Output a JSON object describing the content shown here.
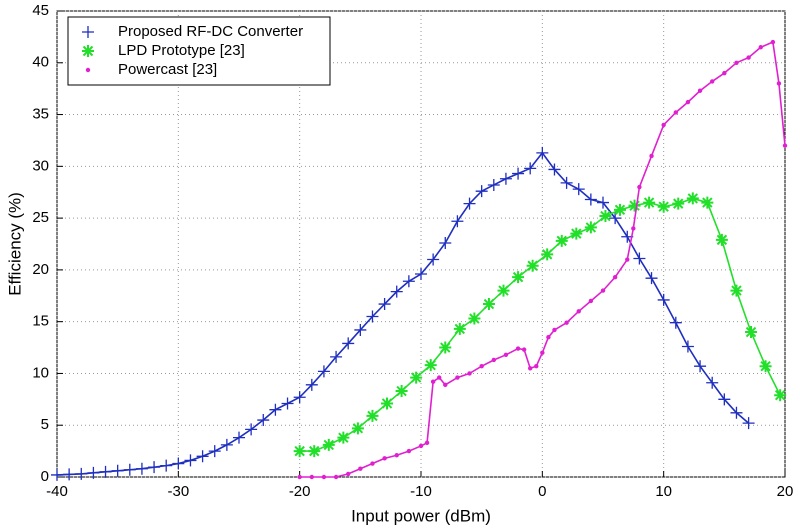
{
  "chart_data": {
    "type": "line",
    "xlabel": "Input power (dBm)",
    "ylabel": "Efficiency (%)",
    "xlim": [
      -40,
      20
    ],
    "ylim": [
      0,
      45
    ],
    "xticks": [
      -40,
      -30,
      -20,
      -10,
      0,
      10,
      20
    ],
    "yticks": [
      0,
      5,
      10,
      15,
      20,
      25,
      30,
      35,
      40,
      45
    ],
    "grid": true,
    "legend": "upper left",
    "series": [
      {
        "name": "Proposed RF-DC Converter",
        "color": "#1f2fbf",
        "marker": "plus",
        "x": [
          -40,
          -39,
          -38,
          -37,
          -36,
          -35,
          -34,
          -33,
          -32,
          -31,
          -30,
          -29,
          -28,
          -27,
          -26,
          -25,
          -24,
          -23,
          -22,
          -21,
          -20,
          -19,
          -18,
          -17,
          -16,
          -15,
          -14,
          -13,
          -12,
          -11,
          -10,
          -9,
          -8,
          -7,
          -6,
          -5,
          -4,
          -3,
          -2,
          -1,
          0,
          1,
          2,
          3,
          4,
          5,
          6,
          7,
          8,
          9,
          10,
          11,
          12,
          13,
          14,
          15,
          16,
          17
        ],
        "values": [
          0.2,
          0.25,
          0.3,
          0.4,
          0.5,
          0.6,
          0.7,
          0.8,
          0.95,
          1.1,
          1.3,
          1.6,
          2.0,
          2.5,
          3.1,
          3.8,
          4.6,
          5.5,
          6.5,
          7.1,
          7.7,
          8.9,
          10.2,
          11.6,
          12.9,
          14.2,
          15.5,
          16.7,
          17.9,
          18.9,
          19.6,
          21.0,
          22.6,
          24.7,
          26.4,
          27.6,
          28.2,
          28.8,
          29.3,
          29.8,
          31.3,
          29.7,
          28.4,
          27.8,
          26.8,
          26.5,
          25.0,
          23.2,
          21.1,
          19.2,
          17.1,
          14.9,
          12.6,
          10.7,
          9.1,
          7.5,
          6.2,
          5.2
        ]
      },
      {
        "name": "LPD Prototype [23]",
        "color": "#22e02a",
        "marker": "asterisk",
        "x": [
          -20,
          -18.8,
          -17.6,
          -16.4,
          -15.2,
          -14,
          -12.8,
          -11.6,
          -10.4,
          -9.2,
          -8,
          -6.8,
          -5.6,
          -4.4,
          -3.2,
          -2,
          -0.8,
          0.4,
          1.6,
          2.8,
          4,
          5.2,
          6.4,
          7.6,
          8.8,
          10,
          11.2,
          12.4,
          13.6,
          14.8,
          16,
          17.2,
          18.4,
          19.6
        ],
        "values": [
          2.5,
          2.5,
          3.1,
          3.8,
          4.7,
          5.9,
          7.1,
          8.3,
          9.6,
          10.8,
          12.5,
          14.3,
          15.3,
          16.7,
          18.0,
          19.3,
          20.4,
          21.5,
          22.8,
          23.5,
          24.1,
          25.2,
          25.8,
          26.2,
          26.5,
          26.1,
          26.4,
          26.9,
          26.5,
          22.9,
          18.0,
          14.0,
          10.7,
          7.9
        ]
      },
      {
        "name": "Powercast [23]",
        "color": "#e020d0",
        "marker": "dot",
        "x": [
          -20,
          -19,
          -18,
          -17,
          -16,
          -15,
          -14,
          -13,
          -12,
          -11,
          -10,
          -9.5,
          -9,
          -8.5,
          -8,
          -7,
          -6,
          -5,
          -4,
          -3,
          -2,
          -1.5,
          -1,
          -0.5,
          0,
          0.5,
          1,
          2,
          3,
          4,
          5,
          6,
          7,
          7.5,
          8,
          9,
          10,
          11,
          12,
          13,
          14,
          15,
          16,
          17,
          18,
          19,
          19.5,
          20
        ],
        "values": [
          0,
          0,
          0,
          0,
          0.3,
          0.8,
          1.3,
          1.8,
          2.1,
          2.5,
          3.0,
          3.3,
          9.2,
          9.6,
          8.9,
          9.6,
          10.0,
          10.7,
          11.3,
          11.8,
          12.4,
          12.3,
          10.5,
          10.7,
          12.0,
          13.5,
          14.2,
          14.9,
          16.0,
          17.0,
          18.0,
          19.3,
          21.0,
          24.0,
          28.0,
          31.0,
          34.0,
          35.2,
          36.2,
          37.3,
          38.2,
          39.0,
          40.0,
          40.5,
          41.5,
          42.0,
          38.0,
          32.0
        ]
      }
    ]
  }
}
